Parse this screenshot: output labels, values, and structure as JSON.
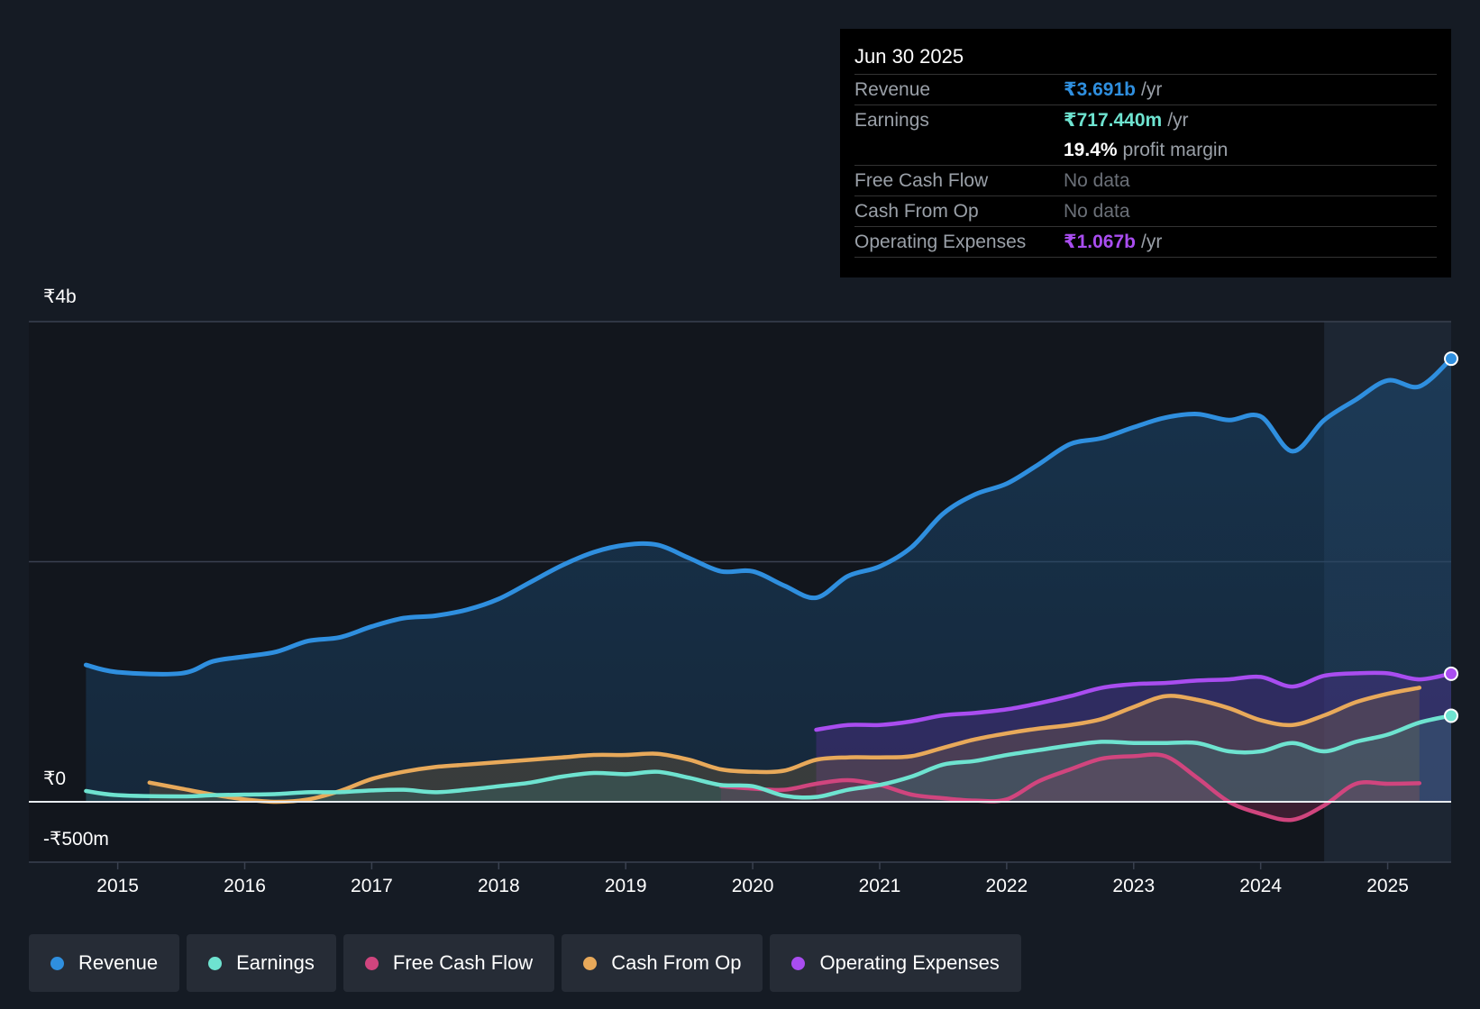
{
  "tooltip": {
    "date": "Jun 30 2025",
    "rows": {
      "revenue": {
        "label": "Revenue",
        "value": "₹3.691b",
        "unit": "/yr",
        "color": "#2f8fdf"
      },
      "earnings": {
        "label": "Earnings",
        "value": "₹717.440m",
        "unit": "/yr",
        "color": "#6ee3d0"
      },
      "margin": {
        "value": "19.4%",
        "unit": "profit margin"
      },
      "fcf": {
        "label": "Free Cash Flow",
        "value": "No data"
      },
      "cfo": {
        "label": "Cash From Op",
        "value": "No data"
      },
      "opex": {
        "label": "Operating Expenses",
        "value": "₹1.067b",
        "unit": "/yr",
        "color": "#a94df0"
      }
    }
  },
  "legend": [
    {
      "label": "Revenue",
      "color": "#2f8fdf"
    },
    {
      "label": "Earnings",
      "color": "#6ee3d0"
    },
    {
      "label": "Free Cash Flow",
      "color": "#d0457e"
    },
    {
      "label": "Cash From Op",
      "color": "#e8a95a"
    },
    {
      "label": "Operating Expenses",
      "color": "#a94df0"
    }
  ],
  "chart_data": {
    "type": "line",
    "ylim": [
      -500,
      4000
    ],
    "ytick_labels": [
      {
        "value": 4000,
        "label": "₹4b"
      },
      {
        "value": 0,
        "label": "₹0"
      },
      {
        "value": -500,
        "label": "-₹500m"
      }
    ],
    "xlim": [
      2014.3,
      2025.5
    ],
    "xtick_labels": [
      "2015",
      "2016",
      "2017",
      "2018",
      "2019",
      "2020",
      "2021",
      "2022",
      "2023",
      "2024",
      "2025"
    ],
    "xtick_values": [
      2015,
      2016,
      2017,
      2018,
      2019,
      2020,
      2021,
      2022,
      2023,
      2024,
      2025
    ],
    "highlight_start": 2024.5,
    "series": [
      {
        "name": "Revenue",
        "color": "#2f8fdf",
        "x": [
          2014.75,
          2015.0,
          2015.5,
          2015.75,
          2016.0,
          2016.25,
          2016.5,
          2016.75,
          2017.0,
          2017.25,
          2017.5,
          2017.75,
          2018.0,
          2018.25,
          2018.5,
          2018.75,
          2019.0,
          2019.25,
          2019.5,
          2019.75,
          2020.0,
          2020.25,
          2020.5,
          2020.75,
          2021.0,
          2021.25,
          2021.5,
          2021.75,
          2022.0,
          2022.25,
          2022.5,
          2022.75,
          2023.0,
          2023.25,
          2023.5,
          2023.75,
          2024.0,
          2024.25,
          2024.5,
          2024.75,
          2025.0,
          2025.25,
          2025.5
        ],
        "values": [
          1140,
          1080,
          1070,
          1170,
          1210,
          1250,
          1340,
          1370,
          1460,
          1530,
          1550,
          1600,
          1690,
          1830,
          1970,
          2080,
          2140,
          2140,
          2030,
          1920,
          1920,
          1800,
          1700,
          1880,
          1960,
          2120,
          2400,
          2560,
          2650,
          2810,
          2980,
          3030,
          3120,
          3200,
          3230,
          3180,
          3210,
          2920,
          3180,
          3350,
          3510,
          3460,
          3691
        ]
      },
      {
        "name": "Earnings",
        "color": "#6ee3d0",
        "x": [
          2014.75,
          2015.0,
          2015.5,
          2015.75,
          2016.0,
          2016.25,
          2016.5,
          2016.75,
          2017.0,
          2017.25,
          2017.5,
          2017.75,
          2018.0,
          2018.25,
          2018.5,
          2018.75,
          2019.0,
          2019.25,
          2019.5,
          2019.75,
          2020.0,
          2020.25,
          2020.5,
          2020.75,
          2021.0,
          2021.25,
          2021.5,
          2021.75,
          2022.0,
          2022.25,
          2022.5,
          2022.75,
          2023.0,
          2023.25,
          2023.5,
          2023.75,
          2024.0,
          2024.25,
          2024.5,
          2024.75,
          2025.0,
          2025.25,
          2025.5
        ],
        "values": [
          90,
          55,
          45,
          55,
          60,
          65,
          80,
          80,
          95,
          100,
          80,
          100,
          130,
          160,
          210,
          240,
          230,
          250,
          200,
          140,
          130,
          50,
          40,
          100,
          140,
          210,
          310,
          340,
          390,
          430,
          470,
          500,
          490,
          490,
          490,
          420,
          420,
          490,
          420,
          500,
          560,
          660,
          717
        ]
      },
      {
        "name": "Free Cash Flow",
        "color": "#d0457e",
        "x": [
          2019.75,
          2020.0,
          2020.25,
          2020.5,
          2020.75,
          2021.0,
          2021.25,
          2021.5,
          2021.75,
          2022.0,
          2022.25,
          2022.5,
          2022.75,
          2023.0,
          2023.25,
          2023.5,
          2023.75,
          2024.0,
          2024.25,
          2024.5,
          2024.75,
          2025.0,
          2025.25
        ],
        "values": [
          130,
          110,
          100,
          150,
          180,
          140,
          60,
          30,
          10,
          20,
          170,
          270,
          360,
          380,
          380,
          200,
          0,
          -100,
          -150,
          -30,
          150,
          150,
          155
        ]
      },
      {
        "name": "Cash From Op",
        "color": "#e8a95a",
        "x": [
          2015.25,
          2015.5,
          2015.75,
          2016.0,
          2016.25,
          2016.5,
          2016.75,
          2017.0,
          2017.25,
          2017.5,
          2017.75,
          2018.0,
          2018.25,
          2018.5,
          2018.75,
          2019.0,
          2019.25,
          2019.5,
          2019.75,
          2020.0,
          2020.25,
          2020.5,
          2020.75,
          2021.0,
          2021.25,
          2021.5,
          2021.75,
          2022.0,
          2022.25,
          2022.5,
          2022.75,
          2023.0,
          2023.25,
          2023.5,
          2023.75,
          2024.0,
          2024.25,
          2024.5,
          2024.75,
          2025.0,
          2025.25
        ],
        "values": [
          160,
          110,
          60,
          20,
          0,
          20,
          90,
          190,
          250,
          290,
          310,
          330,
          350,
          370,
          390,
          390,
          400,
          350,
          270,
          250,
          260,
          350,
          370,
          370,
          380,
          450,
          520,
          570,
          610,
          640,
          690,
          790,
          880,
          850,
          780,
          680,
          640,
          720,
          830,
          900,
          950
        ]
      },
      {
        "name": "Operating Expenses",
        "color": "#a94df0",
        "x": [
          2020.5,
          2020.75,
          2021.0,
          2021.25,
          2021.5,
          2021.75,
          2022.0,
          2022.25,
          2022.5,
          2022.75,
          2023.0,
          2023.25,
          2023.5,
          2023.75,
          2024.0,
          2024.25,
          2024.5,
          2024.75,
          2025.0,
          2025.25,
          2025.5
        ],
        "values": [
          600,
          640,
          640,
          670,
          720,
          740,
          770,
          820,
          880,
          950,
          980,
          990,
          1010,
          1020,
          1040,
          960,
          1050,
          1070,
          1070,
          1020,
          1067
        ]
      }
    ]
  }
}
